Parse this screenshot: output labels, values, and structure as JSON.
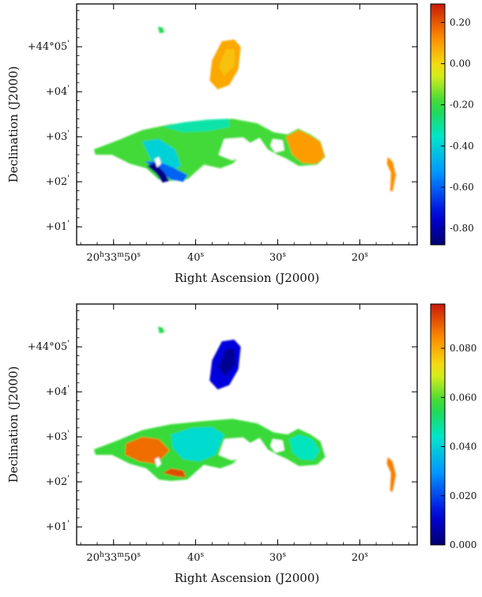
{
  "chart_data": [
    {
      "type": "heatmap",
      "title": "",
      "xlabel": "Right Ascension (J2000)",
      "ylabel": "Declination (J2000)",
      "x_ticks": [
        {
          "label": "20h33m50s",
          "h": "20",
          "m": "33",
          "s": "50",
          "sec": 50
        },
        {
          "label": "40s",
          "s": "40",
          "sec": 40
        },
        {
          "label": "30s",
          "s": "30",
          "sec": 30
        },
        {
          "label": "20s",
          "s": "20",
          "sec": 20
        }
      ],
      "y_ticks": [
        {
          "label": "+44°05'",
          "main": "+44°05",
          "arcmin": 5
        },
        {
          "label": "+04'",
          "main": "+04",
          "arcmin": 4
        },
        {
          "label": "+03'",
          "main": "+03",
          "arcmin": 3
        },
        {
          "label": "+02'",
          "main": "+02",
          "arcmin": 2
        },
        {
          "label": "+01'",
          "main": "+01",
          "arcmin": 1
        }
      ],
      "xlim": [
        54.5,
        13
      ],
      "ylim": [
        0.6,
        5.95
      ],
      "colorbar": {
        "min": -0.88,
        "max": 0.29,
        "ticks": [
          "0.20",
          "0.00",
          "-0.20",
          "-0.40",
          "-0.60",
          "-0.80"
        ],
        "tick_values": [
          0.2,
          0.0,
          -0.2,
          -0.4,
          -0.6,
          -0.8
        ]
      },
      "regions": [
        {
          "name": "north blob",
          "value": 0.08,
          "outline": [
            [
              36.8,
              5.12
            ],
            [
              35.3,
              5.16
            ],
            [
              34.5,
              5.0
            ],
            [
              34.8,
              4.5
            ],
            [
              35.9,
              4.15
            ],
            [
              37.3,
              4.05
            ],
            [
              38.3,
              4.25
            ],
            [
              38.0,
              4.7
            ]
          ]
        },
        {
          "name": "north blob core",
          "value": 0.04,
          "outline": [
            [
              36.3,
              4.95
            ],
            [
              35.3,
              4.95
            ],
            [
              35.2,
              4.6
            ],
            [
              36.5,
              4.35
            ],
            [
              37.2,
              4.55
            ]
          ]
        },
        {
          "name": "north-west knot",
          "value": -0.22,
          "outline": [
            [
              44.6,
              5.45
            ],
            [
              44.0,
              5.42
            ],
            [
              43.8,
              5.32
            ],
            [
              44.4,
              5.3
            ]
          ]
        },
        {
          "name": "main ridge",
          "value": -0.18,
          "outline": [
            [
              52.4,
              2.72
            ],
            [
              49.5,
              2.92
            ],
            [
              46.5,
              3.15
            ],
            [
              43.0,
              3.28
            ],
            [
              39.0,
              3.35
            ],
            [
              35.5,
              3.4
            ],
            [
              32.5,
              3.3
            ],
            [
              30.5,
              3.1
            ],
            [
              28.8,
              3.05
            ],
            [
              27.5,
              3.18
            ],
            [
              26.0,
              3.05
            ],
            [
              24.8,
              2.9
            ],
            [
              24.2,
              2.55
            ],
            [
              25.2,
              2.38
            ],
            [
              27.4,
              2.35
            ],
            [
              29.0,
              2.52
            ],
            [
              30.0,
              2.6
            ],
            [
              31.2,
              2.72
            ],
            [
              32.2,
              2.98
            ],
            [
              33.5,
              2.85
            ],
            [
              34.5,
              2.58
            ],
            [
              35.5,
              2.4
            ],
            [
              37.0,
              2.3
            ],
            [
              39.0,
              2.38
            ],
            [
              41.0,
              2.05
            ],
            [
              43.0,
              2.02
            ],
            [
              44.5,
              2.05
            ],
            [
              46.0,
              2.3
            ],
            [
              48.0,
              2.4
            ],
            [
              50.2,
              2.6
            ],
            [
              52.2,
              2.6
            ]
          ]
        },
        {
          "name": "ridge east lobe",
          "value": 0.1,
          "outline": [
            [
              29.0,
              3.0
            ],
            [
              27.4,
              3.15
            ],
            [
              26.0,
              3.02
            ],
            [
              24.8,
              2.88
            ],
            [
              24.3,
              2.55
            ],
            [
              25.3,
              2.4
            ],
            [
              27.0,
              2.42
            ],
            [
              28.2,
              2.6
            ]
          ]
        },
        {
          "name": "ridge north crest",
          "value": -0.32,
          "outline": [
            [
              44.0,
              3.22
            ],
            [
              41.5,
              3.32
            ],
            [
              38.5,
              3.38
            ],
            [
              36.0,
              3.4
            ],
            [
              35.8,
              3.22
            ],
            [
              38.5,
              3.12
            ],
            [
              41.5,
              3.1
            ]
          ]
        },
        {
          "name": "ridge west trough",
          "value": -0.4,
          "outline": [
            [
              46.5,
              2.9
            ],
            [
              44.5,
              2.95
            ],
            [
              42.5,
              2.72
            ],
            [
              41.8,
              2.35
            ],
            [
              43.5,
              2.2
            ],
            [
              45.5,
              2.5
            ]
          ]
        },
        {
          "name": "ridge south-west",
          "value": -0.6,
          "outline": [
            [
              46.2,
              2.45
            ],
            [
              44.5,
              2.25
            ],
            [
              43.0,
              2.05
            ],
            [
              41.5,
              2.0
            ],
            [
              41.0,
              2.15
            ],
            [
              42.8,
              2.32
            ],
            [
              44.6,
              2.45
            ]
          ]
        },
        {
          "name": "ridge south-west tip",
          "value": -0.85,
          "outline": [
            [
              45.9,
              2.35
            ],
            [
              44.8,
              2.18
            ],
            [
              44.0,
              1.98
            ],
            [
              43.2,
              2.02
            ],
            [
              43.8,
              2.2
            ],
            [
              45.0,
              2.42
            ]
          ]
        },
        {
          "name": "east filament",
          "value": 0.12,
          "outline": [
            [
              16.6,
              2.55
            ],
            [
              16.0,
              2.45
            ],
            [
              15.6,
              2.15
            ],
            [
              16.0,
              1.78
            ],
            [
              16.3,
              1.8
            ],
            [
              16.2,
              2.2
            ],
            [
              16.7,
              2.4
            ]
          ]
        }
      ],
      "holes": [
        {
          "outline": [
            [
              36.5,
              2.95
            ],
            [
              34.2,
              2.98
            ],
            [
              32.8,
              2.78
            ],
            [
              33.5,
              2.55
            ],
            [
              35.6,
              2.48
            ],
            [
              37.2,
              2.6
            ]
          ]
        },
        {
          "outline": [
            [
              30.6,
              2.95
            ],
            [
              29.4,
              2.92
            ],
            [
              29.2,
              2.7
            ],
            [
              30.3,
              2.65
            ],
            [
              30.9,
              2.8
            ]
          ]
        },
        {
          "outline": [
            [
              45.0,
              2.5
            ],
            [
              44.5,
              2.55
            ],
            [
              44.2,
              2.4
            ],
            [
              44.7,
              2.32
            ]
          ]
        }
      ]
    },
    {
      "type": "heatmap",
      "title": "",
      "xlabel": "Right Ascension (J2000)",
      "ylabel": "Declination (J2000)",
      "x_ticks": [
        {
          "label": "20h33m50s",
          "h": "20",
          "m": "33",
          "s": "50",
          "sec": 50
        },
        {
          "label": "40s",
          "s": "40",
          "sec": 40
        },
        {
          "label": "30s",
          "s": "30",
          "sec": 30
        },
        {
          "label": "20s",
          "s": "20",
          "sec": 20
        }
      ],
      "y_ticks": [
        {
          "label": "+44°05'",
          "main": "+44°05",
          "arcmin": 5
        },
        {
          "label": "+04'",
          "main": "+04",
          "arcmin": 4
        },
        {
          "label": "+03'",
          "main": "+03",
          "arcmin": 3
        },
        {
          "label": "+02'",
          "main": "+02",
          "arcmin": 2
        },
        {
          "label": "+01'",
          "main": "+01",
          "arcmin": 1
        }
      ],
      "xlim": [
        54.5,
        13
      ],
      "ylim": [
        0.6,
        5.95
      ],
      "colorbar": {
        "min": 0.0,
        "max": 0.098,
        "ticks": [
          "0.080",
          "0.060",
          "0.040",
          "0.020",
          "0.000"
        ],
        "tick_values": [
          0.08,
          0.06,
          0.04,
          0.02,
          0.0
        ]
      },
      "regions": [
        {
          "name": "north blob",
          "value": 0.012,
          "outline": [
            [
              36.8,
              5.12
            ],
            [
              35.3,
              5.16
            ],
            [
              34.5,
              5.0
            ],
            [
              34.8,
              4.5
            ],
            [
              35.9,
              4.15
            ],
            [
              37.3,
              4.05
            ],
            [
              38.3,
              4.25
            ],
            [
              38.0,
              4.7
            ]
          ]
        },
        {
          "name": "north blob core",
          "value": 0.004,
          "outline": [
            [
              36.3,
              4.95
            ],
            [
              35.3,
              4.95
            ],
            [
              35.2,
              4.6
            ],
            [
              36.5,
              4.35
            ],
            [
              37.2,
              4.55
            ]
          ]
        },
        {
          "name": "north-west knot",
          "value": 0.055,
          "outline": [
            [
              44.6,
              5.45
            ],
            [
              44.0,
              5.42
            ],
            [
              43.8,
              5.32
            ],
            [
              44.4,
              5.3
            ]
          ]
        },
        {
          "name": "main ridge",
          "value": 0.058,
          "outline": [
            [
              52.4,
              2.72
            ],
            [
              49.5,
              2.92
            ],
            [
              46.5,
              3.15
            ],
            [
              43.0,
              3.28
            ],
            [
              39.0,
              3.35
            ],
            [
              35.5,
              3.4
            ],
            [
              32.5,
              3.3
            ],
            [
              30.5,
              3.1
            ],
            [
              28.8,
              3.05
            ],
            [
              27.5,
              3.18
            ],
            [
              26.0,
              3.05
            ],
            [
              24.8,
              2.9
            ],
            [
              24.2,
              2.55
            ],
            [
              25.2,
              2.38
            ],
            [
              27.4,
              2.35
            ],
            [
              29.0,
              2.52
            ],
            [
              30.0,
              2.6
            ],
            [
              31.2,
              2.72
            ],
            [
              32.2,
              2.98
            ],
            [
              33.5,
              2.85
            ],
            [
              34.5,
              2.58
            ],
            [
              35.5,
              2.4
            ],
            [
              37.0,
              2.3
            ],
            [
              39.0,
              2.38
            ],
            [
              41.0,
              2.05
            ],
            [
              43.0,
              2.02
            ],
            [
              44.5,
              2.05
            ],
            [
              46.0,
              2.3
            ],
            [
              48.0,
              2.4
            ],
            [
              50.2,
              2.6
            ],
            [
              52.2,
              2.6
            ]
          ]
        },
        {
          "name": "ridge west patch",
          "value": 0.088,
          "outline": [
            [
              48.5,
              2.85
            ],
            [
              46.5,
              3.0
            ],
            [
              44.5,
              2.95
            ],
            [
              43.2,
              2.7
            ],
            [
              44.8,
              2.4
            ],
            [
              46.8,
              2.45
            ],
            [
              48.6,
              2.6
            ]
          ]
        },
        {
          "name": "ridge center patch",
          "value": 0.042,
          "outline": [
            [
              43.0,
              3.05
            ],
            [
              40.5,
              3.2
            ],
            [
              38.0,
              3.22
            ],
            [
              36.5,
              3.05
            ],
            [
              37.6,
              2.6
            ],
            [
              39.5,
              2.45
            ],
            [
              41.5,
              2.5
            ],
            [
              42.8,
              2.75
            ]
          ]
        },
        {
          "name": "ridge east lobe",
          "value": 0.045,
          "outline": [
            [
              28.6,
              2.95
            ],
            [
              27.3,
              3.05
            ],
            [
              25.8,
              2.95
            ],
            [
              24.9,
              2.7
            ],
            [
              25.6,
              2.48
            ],
            [
              27.2,
              2.5
            ],
            [
              28.2,
              2.65
            ]
          ]
        },
        {
          "name": "ridge south edge",
          "value": 0.092,
          "outline": [
            [
              44.0,
              2.2
            ],
            [
              42.5,
              2.12
            ],
            [
              41.2,
              2.1
            ],
            [
              41.5,
              2.25
            ],
            [
              43.0,
              2.3
            ]
          ]
        },
        {
          "name": "east filament",
          "value": 0.086,
          "outline": [
            [
              16.6,
              2.55
            ],
            [
              16.0,
              2.45
            ],
            [
              15.6,
              2.15
            ],
            [
              16.0,
              1.78
            ],
            [
              16.3,
              1.8
            ],
            [
              16.2,
              2.2
            ],
            [
              16.7,
              2.4
            ]
          ]
        }
      ],
      "holes": [
        {
          "outline": [
            [
              36.5,
              2.95
            ],
            [
              34.2,
              2.98
            ],
            [
              32.8,
              2.78
            ],
            [
              33.5,
              2.55
            ],
            [
              35.6,
              2.48
            ],
            [
              37.2,
              2.6
            ]
          ]
        },
        {
          "outline": [
            [
              30.6,
              2.95
            ],
            [
              29.4,
              2.92
            ],
            [
              29.2,
              2.7
            ],
            [
              30.3,
              2.65
            ],
            [
              30.9,
              2.8
            ]
          ]
        },
        {
          "outline": [
            [
              45.0,
              2.5
            ],
            [
              44.5,
              2.55
            ],
            [
              44.2,
              2.4
            ],
            [
              44.7,
              2.32
            ]
          ]
        }
      ]
    }
  ]
}
